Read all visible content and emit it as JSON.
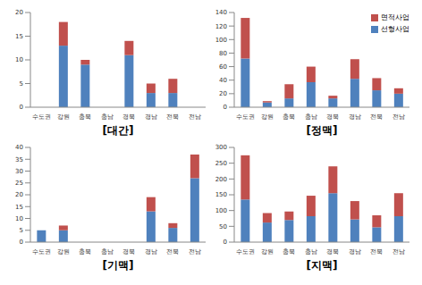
{
  "chart_data": [
    {
      "type": "bar",
      "stacked": true,
      "title": "[대간]",
      "categories": [
        "수도권",
        "강원",
        "충북",
        "충남",
        "경북",
        "경남",
        "전북",
        "전남"
      ],
      "series": [
        {
          "name": "선형사업",
          "color": "#4f81bd",
          "values": [
            0,
            13,
            9,
            0,
            11,
            3,
            3,
            0
          ]
        },
        {
          "name": "면적사업",
          "color": "#c0504d",
          "values": [
            0,
            5,
            1,
            0,
            3,
            2,
            3,
            0
          ]
        }
      ],
      "ylim": [
        0,
        20
      ],
      "yticks": [
        0,
        5,
        10,
        15,
        20
      ]
    },
    {
      "type": "bar",
      "stacked": true,
      "title": "[정맥]",
      "legend": "upper right",
      "categories": [
        "수도권",
        "강원",
        "충북",
        "충남",
        "경북",
        "경남",
        "전북",
        "전남"
      ],
      "series": [
        {
          "name": "선형사업",
          "color": "#4f81bd",
          "values": [
            72,
            7,
            13,
            37,
            13,
            42,
            25,
            20
          ]
        },
        {
          "name": "면적사업",
          "color": "#c0504d",
          "values": [
            60,
            2,
            21,
            23,
            4,
            29,
            18,
            8
          ]
        }
      ],
      "ylim": [
        0,
        140
      ],
      "yticks": [
        0,
        20,
        40,
        60,
        80,
        100,
        120,
        140
      ]
    },
    {
      "type": "bar",
      "stacked": true,
      "title": "[기맥]",
      "categories": [
        "수도권",
        "강원",
        "충북",
        "충남",
        "경북",
        "경남",
        "전북",
        "전남"
      ],
      "series": [
        {
          "name": "선형사업",
          "color": "#4f81bd",
          "values": [
            5,
            5,
            0,
            0,
            0,
            13,
            6,
            27
          ]
        },
        {
          "name": "면적사업",
          "color": "#c0504d",
          "values": [
            0,
            2,
            0,
            0,
            0,
            6,
            2,
            10
          ]
        }
      ],
      "ylim": [
        0,
        40
      ],
      "yticks": [
        0,
        5,
        10,
        15,
        20,
        25,
        30,
        35,
        40
      ]
    },
    {
      "type": "bar",
      "stacked": true,
      "title": "[지맥]",
      "categories": [
        "수도권",
        "강원",
        "충북",
        "충남",
        "경북",
        "경남",
        "전북",
        "전남"
      ],
      "series": [
        {
          "name": "선형사업",
          "color": "#4f81bd",
          "values": [
            135,
            62,
            70,
            82,
            155,
            72,
            47,
            82
          ]
        },
        {
          "name": "면적사업",
          "color": "#c0504d",
          "values": [
            140,
            30,
            27,
            65,
            85,
            58,
            38,
            73
          ]
        }
      ],
      "ylim": [
        0,
        300
      ],
      "yticks": [
        0,
        50,
        100,
        150,
        200,
        250,
        300
      ]
    }
  ]
}
